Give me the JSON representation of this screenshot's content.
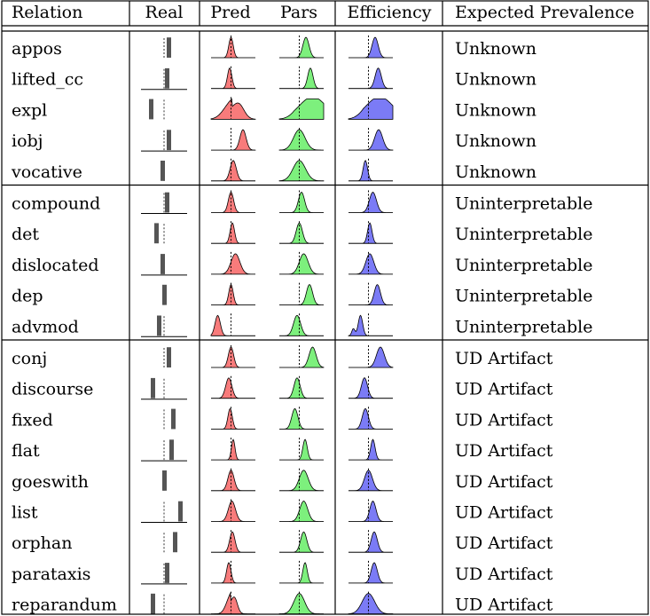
{
  "headers": {
    "relation": "Relation",
    "real": "Real",
    "pred": "Pred",
    "pars": "Pars",
    "efficiency": "Efficiency",
    "expected": "Expected Prevalence"
  },
  "colors": {
    "pred": "#f87b7b",
    "pars": "#7df07d",
    "efficiency": "#7b7bf6",
    "real_bar": "#555555",
    "baseline": "#999999"
  },
  "groups": [
    {
      "rows": [
        {
          "relation": "appos",
          "expected": "Unknown",
          "real": {
            "offset": 0.55,
            "height": 0.95,
            "underline": false
          },
          "pred": {
            "shape": "normal",
            "mean": 0.45,
            "sd": 0.05,
            "mark": 0.45
          },
          "pars": {
            "shape": "normal",
            "mean": 0.6,
            "sd": 0.07,
            "mark": 0.45
          },
          "eff": {
            "shape": "normal",
            "mean": 0.6,
            "sd": 0.07,
            "mark": 0.45
          }
        },
        {
          "relation": "lifted_cc",
          "expected": "Unknown",
          "real": {
            "offset": 0.35,
            "height": 0.95,
            "underline": true
          },
          "pred": {
            "shape": "normal",
            "mean": 0.42,
            "sd": 0.05,
            "mark": 0.45
          },
          "pars": {
            "shape": "normal",
            "mean": 0.7,
            "sd": 0.06,
            "mark": 0.45
          },
          "eff": {
            "shape": "normal",
            "mean": 0.67,
            "sd": 0.07,
            "mark": 0.45
          }
        },
        {
          "relation": "expl",
          "expected": "Unknown",
          "real": {
            "offset": -1.45,
            "height": 0.95,
            "underline": false
          },
          "pred": {
            "shape": "skew",
            "mean": 0.48,
            "sd": 0.18,
            "mark": 0.45
          },
          "pars": {
            "shape": "wide",
            "mean": 0.75,
            "sd": 0.3,
            "mark": 0.45
          },
          "eff": {
            "shape": "wide",
            "mean": 0.7,
            "sd": 0.3,
            "mark": 0.45
          }
        },
        {
          "relation": "iobj",
          "expected": "Unknown",
          "real": {
            "offset": 0.55,
            "height": 0.95,
            "underline": true
          },
          "pred": {
            "shape": "normal",
            "mean": 0.72,
            "sd": 0.07,
            "mark": 0.45
          },
          "pars": {
            "shape": "normal",
            "mean": 0.45,
            "sd": 0.13,
            "mark": 0.45
          },
          "eff": {
            "shape": "normal",
            "mean": 0.68,
            "sd": 0.09,
            "mark": 0.45
          }
        },
        {
          "relation": "vocative",
          "expected": "Unknown",
          "real": {
            "offset": -0.15,
            "height": 0.95,
            "underline": false
          },
          "pred": {
            "shape": "normal",
            "mean": 0.5,
            "sd": 0.07,
            "mark": 0.45
          },
          "pars": {
            "shape": "normal",
            "mean": 0.45,
            "sd": 0.14,
            "mark": 0.45
          },
          "eff": {
            "shape": "normal",
            "mean": 0.38,
            "sd": 0.05,
            "mark": 0.45
          }
        }
      ]
    },
    {
      "rows": [
        {
          "relation": "compound",
          "expected": "Uninterpretable",
          "real": {
            "offset": 0.35,
            "height": 0.95,
            "underline": true
          },
          "pred": {
            "shape": "normal",
            "mean": 0.45,
            "sd": 0.06,
            "mark": 0.45
          },
          "pars": {
            "shape": "normal",
            "mean": 0.5,
            "sd": 0.07,
            "mark": 0.45
          },
          "eff": {
            "shape": "normal",
            "mean": 0.55,
            "sd": 0.08,
            "mark": 0.45
          }
        },
        {
          "relation": "det",
          "expected": "Uninterpretable",
          "real": {
            "offset": -0.85,
            "height": 0.95,
            "underline": false
          },
          "pred": {
            "shape": "normal",
            "mean": 0.48,
            "sd": 0.05,
            "mark": 0.45
          },
          "pars": {
            "shape": "normal",
            "mean": 0.45,
            "sd": 0.07,
            "mark": 0.45
          },
          "eff": {
            "shape": "normal",
            "mean": 0.48,
            "sd": 0.05,
            "mark": 0.45
          }
        },
        {
          "relation": "dislocated",
          "expected": "Uninterpretable",
          "real": {
            "offset": -0.15,
            "height": 0.95,
            "underline": true
          },
          "pred": {
            "shape": "normal",
            "mean": 0.55,
            "sd": 0.1,
            "mark": 0.45
          },
          "pars": {
            "shape": "normal",
            "mean": 0.55,
            "sd": 0.1,
            "mark": 0.45
          },
          "eff": {
            "shape": "normal",
            "mean": 0.48,
            "sd": 0.09,
            "mark": 0.45
          }
        },
        {
          "relation": "dep",
          "expected": "Uninterpretable",
          "real": {
            "offset": 0.05,
            "height": 0.95,
            "underline": false
          },
          "pred": {
            "shape": "normal",
            "mean": 0.45,
            "sd": 0.05,
            "mark": 0.45
          },
          "pars": {
            "shape": "normal",
            "mean": 0.68,
            "sd": 0.07,
            "mark": 0.45
          },
          "eff": {
            "shape": "normal",
            "mean": 0.65,
            "sd": 0.07,
            "mark": 0.45
          }
        },
        {
          "relation": "advmod",
          "expected": "Uninterpretable",
          "real": {
            "offset": -0.55,
            "height": 0.95,
            "underline": true
          },
          "pred": {
            "shape": "normal",
            "mean": 0.15,
            "sd": 0.06,
            "mark": 0.45
          },
          "pars": {
            "shape": "normal",
            "mean": 0.4,
            "sd": 0.08,
            "mark": 0.45
          },
          "eff": {
            "shape": "bimodal",
            "mean": 0.27,
            "sd": 0.05,
            "mark": 0.45
          }
        }
      ]
    },
    {
      "rows": [
        {
          "relation": "conj",
          "expected": "UD Artifact",
          "real": {
            "offset": 0.55,
            "height": 0.95,
            "underline": false
          },
          "pred": {
            "shape": "normal",
            "mean": 0.45,
            "sd": 0.06,
            "mark": 0.45
          },
          "pars": {
            "shape": "normal",
            "mean": 0.75,
            "sd": 0.08,
            "mark": 0.45
          },
          "eff": {
            "shape": "normal",
            "mean": 0.72,
            "sd": 0.09,
            "mark": 0.45
          }
        },
        {
          "relation": "discourse",
          "expected": "UD Artifact",
          "real": {
            "offset": -1.25,
            "height": 0.95,
            "underline": true
          },
          "pred": {
            "shape": "normal",
            "mean": 0.4,
            "sd": 0.07,
            "mark": 0.45
          },
          "pars": {
            "shape": "normal",
            "mean": 0.4,
            "sd": 0.07,
            "mark": 0.45
          },
          "eff": {
            "shape": "normal",
            "mean": 0.36,
            "sd": 0.07,
            "mark": 0.45
          }
        },
        {
          "relation": "fixed",
          "expected": "UD Artifact",
          "real": {
            "offset": 1.05,
            "height": 0.95,
            "underline": false
          },
          "pred": {
            "shape": "normal",
            "mean": 0.43,
            "sd": 0.05,
            "mark": 0.45
          },
          "pars": {
            "shape": "normal",
            "mean": 0.35,
            "sd": 0.07,
            "mark": 0.45
          },
          "eff": {
            "shape": "normal",
            "mean": 0.38,
            "sd": 0.07,
            "mark": 0.45
          }
        },
        {
          "relation": "flat",
          "expected": "UD Artifact",
          "real": {
            "offset": 0.85,
            "height": 0.95,
            "underline": true
          },
          "pred": {
            "shape": "normal",
            "mean": 0.5,
            "sd": 0.04,
            "mark": 0.45
          },
          "pars": {
            "shape": "normal",
            "mean": 0.58,
            "sd": 0.05,
            "mark": 0.45
          },
          "eff": {
            "shape": "normal",
            "mean": 0.55,
            "sd": 0.05,
            "mark": 0.45
          }
        },
        {
          "relation": "goeswith",
          "expected": "UD Artifact",
          "real": {
            "offset": 0.05,
            "height": 0.95,
            "underline": false
          },
          "pred": {
            "shape": "normal",
            "mean": 0.45,
            "sd": 0.07,
            "mark": 0.45
          },
          "pars": {
            "shape": "normal",
            "mean": 0.55,
            "sd": 0.1,
            "mark": 0.45
          },
          "eff": {
            "shape": "normal",
            "mean": 0.45,
            "sd": 0.09,
            "mark": 0.45
          }
        },
        {
          "relation": "list",
          "expected": "UD Artifact",
          "real": {
            "offset": 1.85,
            "height": 0.95,
            "underline": true
          },
          "pred": {
            "shape": "normal",
            "mean": 0.47,
            "sd": 0.08,
            "mark": 0.45
          },
          "pars": {
            "shape": "normal",
            "mean": 0.55,
            "sd": 0.09,
            "mark": 0.45
          },
          "eff": {
            "shape": "normal",
            "mean": 0.55,
            "sd": 0.07,
            "mark": 0.45
          }
        },
        {
          "relation": "orphan",
          "expected": "UD Artifact",
          "real": {
            "offset": 1.25,
            "height": 0.95,
            "underline": false
          },
          "pred": {
            "shape": "normal",
            "mean": 0.48,
            "sd": 0.06,
            "mark": 0.45
          },
          "pars": {
            "shape": "normal",
            "mean": 0.55,
            "sd": 0.07,
            "mark": 0.45
          },
          "eff": {
            "shape": "normal",
            "mean": 0.58,
            "sd": 0.07,
            "mark": 0.45
          }
        },
        {
          "relation": "parataxis",
          "expected": "UD Artifact",
          "real": {
            "offset": 0.35,
            "height": 0.95,
            "underline": true
          },
          "pred": {
            "shape": "normal",
            "mean": 0.4,
            "sd": 0.05,
            "mark": 0.45
          },
          "pars": {
            "shape": "normal",
            "mean": 0.58,
            "sd": 0.05,
            "mark": 0.45
          },
          "eff": {
            "shape": "normal",
            "mean": 0.58,
            "sd": 0.07,
            "mark": 0.45
          }
        },
        {
          "relation": "reparandum",
          "expected": "UD Artifact",
          "real": {
            "offset": -1.25,
            "height": 0.95,
            "underline": false
          },
          "pred": {
            "shape": "skew",
            "mean": 0.45,
            "sd": 0.1,
            "mark": 0.45
          },
          "pars": {
            "shape": "normal",
            "mean": 0.45,
            "sd": 0.12,
            "mark": 0.45
          },
          "eff": {
            "shape": "normal",
            "mean": 0.45,
            "sd": 0.14,
            "mark": 0.45
          }
        }
      ]
    }
  ]
}
